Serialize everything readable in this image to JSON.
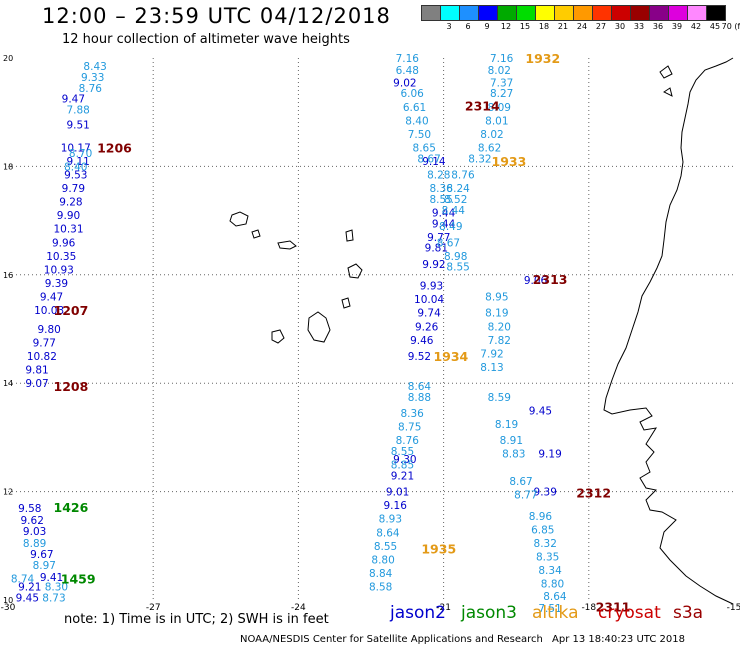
{
  "header": {
    "title": "12:00 – 23:59 UTC 04/12/2018",
    "subtitle": "12 hour collection of altimeter wave heights"
  },
  "legend": {
    "colors": [
      "#808080",
      "#00ffff",
      "#1e90ff",
      "#0000ff",
      "#00aa00",
      "#00dd00",
      "#ffff00",
      "#ffcc00",
      "#ff9900",
      "#ff3300",
      "#cc0000",
      "#990000",
      "#880088",
      "#dd00dd",
      "#ff88ff",
      "#000000"
    ],
    "labels": [
      "3",
      "6",
      "9",
      "12",
      "15",
      "18",
      "21",
      "24",
      "27",
      "30",
      "33",
      "36",
      "39",
      "42",
      "45",
      "70 (ft)"
    ]
  },
  "chart_data": {
    "type": "map",
    "xlabel": "",
    "ylabel": "",
    "xlim": [
      -30,
      -15
    ],
    "ylim": [
      10,
      20
    ],
    "x_ticks": [
      "-30",
      "-27",
      "-24",
      "-21",
      "-18",
      "-15"
    ],
    "y_ticks": [
      "10",
      "12",
      "14",
      "16",
      "18",
      "20"
    ],
    "series": [
      {
        "name": "jason2",
        "color": "#0000cc",
        "points": [
          {
            "lon": -28.6,
            "lat": 18.35,
            "swh": "10.17"
          },
          {
            "lon": -28.55,
            "lat": 18.1,
            "swh": "9.11"
          },
          {
            "lon": -28.6,
            "lat": 17.85,
            "swh": "9.53"
          },
          {
            "lon": -28.65,
            "lat": 17.6,
            "swh": "9.79"
          },
          {
            "lon": -28.7,
            "lat": 17.35,
            "swh": "9.28"
          },
          {
            "lon": -28.75,
            "lat": 17.1,
            "swh": "9.90"
          },
          {
            "lon": -28.75,
            "lat": 16.85,
            "swh": "10.31"
          },
          {
            "lon": -28.85,
            "lat": 16.6,
            "swh": "9.96"
          },
          {
            "lon": -28.9,
            "lat": 16.35,
            "swh": "10.35"
          },
          {
            "lon": -28.95,
            "lat": 16.1,
            "swh": "10.93"
          },
          {
            "lon": -29.0,
            "lat": 15.85,
            "swh": "9.39"
          },
          {
            "lon": -29.1,
            "lat": 15.6,
            "swh": "9.47"
          },
          {
            "lon": -29.15,
            "lat": 15.35,
            "swh": "10.03"
          },
          {
            "lon": -29.15,
            "lat": 15.0,
            "swh": "9.80"
          },
          {
            "lon": -29.25,
            "lat": 14.75,
            "swh": "9.77"
          },
          {
            "lon": -29.3,
            "lat": 14.5,
            "swh": "10.82"
          },
          {
            "lon": -29.4,
            "lat": 14.25,
            "swh": "9.81"
          },
          {
            "lon": -29.4,
            "lat": 14.0,
            "swh": "9.07"
          },
          {
            "lon": -28.65,
            "lat": 19.25,
            "swh": "9.47"
          },
          {
            "lon": -28.55,
            "lat": 18.77,
            "swh": "9.51"
          },
          {
            "lon": -21.8,
            "lat": 19.55,
            "swh": "9.02"
          },
          {
            "lon": -21.2,
            "lat": 18.1,
            "swh": "9.14"
          },
          {
            "lon": -21.0,
            "lat": 17.15,
            "swh": "9.44"
          },
          {
            "lon": -21.0,
            "lat": 16.95,
            "swh": "9.44"
          },
          {
            "lon": -21.1,
            "lat": 16.7,
            "swh": "9.77"
          },
          {
            "lon": -21.15,
            "lat": 16.5,
            "swh": "9.81"
          },
          {
            "lon": -21.2,
            "lat": 16.2,
            "swh": "9.92"
          },
          {
            "lon": -21.25,
            "lat": 15.8,
            "swh": "9.93"
          },
          {
            "lon": -21.3,
            "lat": 15.55,
            "swh": "10.04"
          },
          {
            "lon": -21.3,
            "lat": 15.3,
            "swh": "9.74"
          },
          {
            "lon": -21.35,
            "lat": 15.05,
            "swh": "9.26"
          },
          {
            "lon": -21.45,
            "lat": 14.8,
            "swh": "9.46"
          },
          {
            "lon": -21.5,
            "lat": 14.5,
            "swh": "9.52"
          },
          {
            "lon": -21.8,
            "lat": 12.6,
            "swh": "9.30"
          },
          {
            "lon": -21.85,
            "lat": 12.3,
            "swh": "9.21"
          },
          {
            "lon": -21.95,
            "lat": 12.0,
            "swh": "9.01"
          },
          {
            "lon": -22.0,
            "lat": 11.75,
            "swh": "9.16"
          },
          {
            "lon": -19.1,
            "lat": 15.9,
            "swh": "9.06"
          },
          {
            "lon": -19.0,
            "lat": 13.5,
            "swh": "9.45"
          },
          {
            "lon": -18.8,
            "lat": 12.7,
            "swh": "9.19"
          },
          {
            "lon": -18.9,
            "lat": 12.0,
            "swh": "9.39"
          },
          {
            "lon": -29.55,
            "lat": 11.7,
            "swh": "9.58"
          },
          {
            "lon": -29.5,
            "lat": 11.48,
            "swh": "9.62"
          },
          {
            "lon": -29.45,
            "lat": 11.27,
            "swh": "9.03"
          },
          {
            "lon": -29.3,
            "lat": 10.85,
            "swh": "9.67"
          },
          {
            "lon": -29.1,
            "lat": 10.42,
            "swh": "9.41"
          },
          {
            "lon": -29.55,
            "lat": 10.25,
            "swh": "9.21"
          },
          {
            "lon": -29.6,
            "lat": 10.05,
            "swh": "9.45"
          }
        ]
      },
      {
        "name": "jason3",
        "color": "#2299dd",
        "points": [
          {
            "lon": -28.2,
            "lat": 19.85,
            "swh": "8.43"
          },
          {
            "lon": -28.25,
            "lat": 19.65,
            "swh": "9.33"
          },
          {
            "lon": -28.3,
            "lat": 19.45,
            "swh": "8.76"
          },
          {
            "lon": -28.55,
            "lat": 19.05,
            "swh": "7.88"
          },
          {
            "lon": -28.5,
            "lat": 18.25,
            "swh": "8.70"
          },
          {
            "lon": -28.6,
            "lat": 18.0,
            "swh": "8.40"
          },
          {
            "lon": -21.75,
            "lat": 20.0,
            "swh": "7.16"
          },
          {
            "lon": -21.75,
            "lat": 19.78,
            "swh": "6.48"
          },
          {
            "lon": -21.65,
            "lat": 19.35,
            "swh": "6.06"
          },
          {
            "lon": -21.6,
            "lat": 19.1,
            "swh": "6.61"
          },
          {
            "lon": -21.55,
            "lat": 18.85,
            "swh": "8.40"
          },
          {
            "lon": -21.5,
            "lat": 18.6,
            "swh": "7.50"
          },
          {
            "lon": -21.4,
            "lat": 18.35,
            "swh": "8.65"
          },
          {
            "lon": -21.3,
            "lat": 18.15,
            "swh": "8.67"
          },
          {
            "lon": -21.1,
            "lat": 17.85,
            "swh": "8.28"
          },
          {
            "lon": -21.05,
            "lat": 17.6,
            "swh": "8.36"
          },
          {
            "lon": -21.05,
            "lat": 17.4,
            "swh": "8.55"
          },
          {
            "lon": -21.5,
            "lat": 13.95,
            "swh": "8.64"
          },
          {
            "lon": -21.5,
            "lat": 13.75,
            "swh": "8.88"
          },
          {
            "lon": -21.65,
            "lat": 13.45,
            "swh": "8.36"
          },
          {
            "lon": -21.7,
            "lat": 13.2,
            "swh": "8.75"
          },
          {
            "lon": -21.75,
            "lat": 12.95,
            "swh": "8.76"
          },
          {
            "lon": -21.85,
            "lat": 12.75,
            "swh": "8.55"
          },
          {
            "lon": -21.85,
            "lat": 12.5,
            "swh": "8.85"
          },
          {
            "lon": -22.1,
            "lat": 11.5,
            "swh": "8.93"
          },
          {
            "lon": -22.15,
            "lat": 11.25,
            "swh": "8.64"
          },
          {
            "lon": -22.2,
            "lat": 11.0,
            "swh": "8.55"
          },
          {
            "lon": -22.25,
            "lat": 10.75,
            "swh": "8.80"
          },
          {
            "lon": -22.3,
            "lat": 10.5,
            "swh": "8.84"
          },
          {
            "lon": -22.3,
            "lat": 10.25,
            "swh": "8.58"
          },
          {
            "lon": -19.8,
            "lat": 20.0,
            "swh": "7.16"
          },
          {
            "lon": -19.85,
            "lat": 19.78,
            "swh": "8.02"
          },
          {
            "lon": -19.8,
            "lat": 19.55,
            "swh": "7.37"
          },
          {
            "lon": -19.8,
            "lat": 19.35,
            "swh": "8.27"
          },
          {
            "lon": -19.85,
            "lat": 19.1,
            "swh": "8.09"
          },
          {
            "lon": -19.9,
            "lat": 18.85,
            "swh": "8.01"
          },
          {
            "lon": -20.0,
            "lat": 18.6,
            "swh": "8.02"
          },
          {
            "lon": -20.05,
            "lat": 18.35,
            "swh": "8.62"
          },
          {
            "lon": -20.25,
            "lat": 18.15,
            "swh": "8.32"
          },
          {
            "lon": -20.6,
            "lat": 17.85,
            "swh": "8.76"
          },
          {
            "lon": -20.7,
            "lat": 17.6,
            "swh": "8.24"
          },
          {
            "lon": -20.75,
            "lat": 17.4,
            "swh": "8.52"
          },
          {
            "lon": -20.8,
            "lat": 17.2,
            "swh": "8.44"
          },
          {
            "lon": -20.85,
            "lat": 16.9,
            "swh": "8.49"
          },
          {
            "lon": -20.9,
            "lat": 16.6,
            "swh": "8.67"
          },
          {
            "lon": -20.75,
            "lat": 16.35,
            "swh": "8.98"
          },
          {
            "lon": -20.7,
            "lat": 16.15,
            "swh": "8.55"
          },
          {
            "lon": -19.9,
            "lat": 15.6,
            "swh": "8.95"
          },
          {
            "lon": -19.9,
            "lat": 15.3,
            "swh": "8.19"
          },
          {
            "lon": -19.85,
            "lat": 15.05,
            "swh": "8.20"
          },
          {
            "lon": -19.85,
            "lat": 14.8,
            "swh": "7.82"
          },
          {
            "lon": -20.0,
            "lat": 14.55,
            "swh": "7.92"
          },
          {
            "lon": -20.0,
            "lat": 14.3,
            "swh": "8.13"
          },
          {
            "lon": -19.85,
            "lat": 13.75,
            "swh": "8.59"
          },
          {
            "lon": -19.7,
            "lat": 13.25,
            "swh": "8.19"
          },
          {
            "lon": -19.6,
            "lat": 12.95,
            "swh": "8.91"
          },
          {
            "lon": -19.55,
            "lat": 12.7,
            "swh": "8.83"
          },
          {
            "lon": -19.4,
            "lat": 12.2,
            "swh": "8.67"
          },
          {
            "lon": -19.3,
            "lat": 11.95,
            "swh": "8.77"
          },
          {
            "lon": -19.0,
            "lat": 11.55,
            "swh": "8.96"
          },
          {
            "lon": -18.95,
            "lat": 11.3,
            "swh": "6.85"
          },
          {
            "lon": -18.9,
            "lat": 11.05,
            "swh": "8.32"
          },
          {
            "lon": -18.85,
            "lat": 10.8,
            "swh": "8.35"
          },
          {
            "lon": -18.8,
            "lat": 10.55,
            "swh": "8.34"
          },
          {
            "lon": -18.75,
            "lat": 10.3,
            "swh": "8.80"
          },
          {
            "lon": -18.7,
            "lat": 10.07,
            "swh": "8.64"
          },
          {
            "lon": -18.8,
            "lat": 9.85,
            "swh": "7.51"
          },
          {
            "lon": -29.45,
            "lat": 11.05,
            "swh": "8.89"
          },
          {
            "lon": -29.25,
            "lat": 10.65,
            "swh": "8.97"
          },
          {
            "lon": -29.7,
            "lat": 10.4,
            "swh": "8.74"
          },
          {
            "lon": -29.0,
            "lat": 10.25,
            "swh": "8.30"
          },
          {
            "lon": -29.05,
            "lat": 10.05,
            "swh": "8.73"
          }
        ]
      }
    ],
    "pass_labels": [
      {
        "text": "1932",
        "lon": -18.95,
        "lat": 20.0,
        "color": "#e39a17"
      },
      {
        "text": "2314",
        "lon": -20.2,
        "lat": 19.12,
        "color": "#800000"
      },
      {
        "text": "1206",
        "lon": -27.8,
        "lat": 18.35,
        "color": "#800000"
      },
      {
        "text": "1933",
        "lon": -19.65,
        "lat": 18.1,
        "color": "#e39a17"
      },
      {
        "text": "2313",
        "lon": -18.8,
        "lat": 15.92,
        "color": "#800000"
      },
      {
        "text": "1207",
        "lon": -28.7,
        "lat": 15.35,
        "color": "#800000"
      },
      {
        "text": "1934",
        "lon": -20.85,
        "lat": 14.5,
        "color": "#e39a17"
      },
      {
        "text": "1208",
        "lon": -28.7,
        "lat": 13.95,
        "color": "#800000"
      },
      {
        "text": "2312",
        "lon": -17.9,
        "lat": 11.98,
        "color": "#800000"
      },
      {
        "text": "1426",
        "lon": -28.7,
        "lat": 11.72,
        "color": "#008800"
      },
      {
        "text": "1935",
        "lon": -21.1,
        "lat": 10.95,
        "color": "#e39a17"
      },
      {
        "text": "1459",
        "lon": -28.55,
        "lat": 10.4,
        "color": "#008800"
      },
      {
        "text": "2311",
        "lon": -17.5,
        "lat": 9.88,
        "color": "#800000"
      }
    ]
  },
  "footer": {
    "note": "note:  1) Time is in UTC;  2) SWH is in feet",
    "sats": [
      {
        "label": "jason2",
        "color": "#0000cc"
      },
      {
        "label": "jason3",
        "color": "#008800"
      },
      {
        "label": "altika",
        "color": "#e39a17"
      },
      {
        "label": "cryosat",
        "color": "#cc0000"
      },
      {
        "label": "s3a",
        "color": "#990000"
      }
    ],
    "credit": "NOAA/NESDIS Center for Satellite Applications and Research",
    "timestamp": "Apr 13 18:40:23 UTC 2018"
  }
}
